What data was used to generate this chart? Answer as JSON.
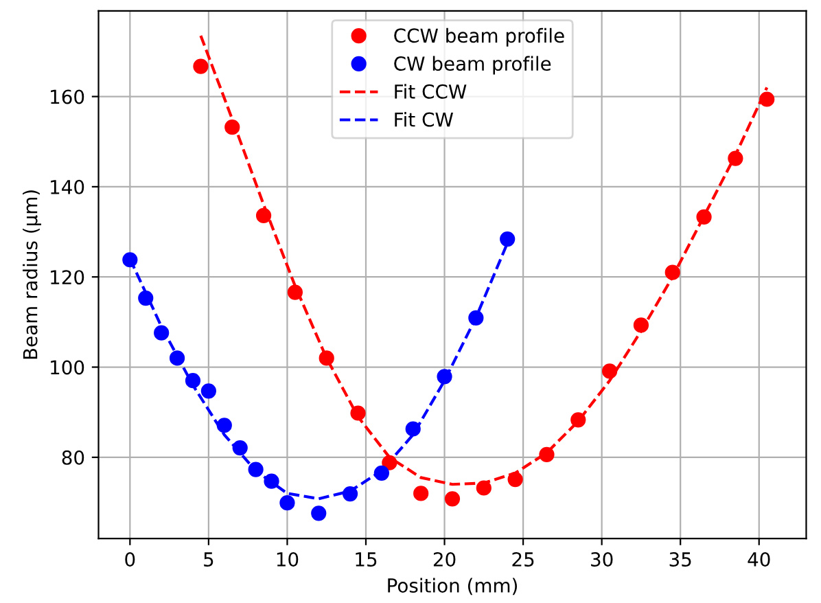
{
  "chart_data": {
    "type": "scatter",
    "xlabel": "Position (mm)",
    "ylabel": "Beam radius (µm)",
    "xlim": [
      -2,
      43
    ],
    "ylim": [
      62,
      179
    ],
    "xticks": [
      0,
      5,
      10,
      15,
      20,
      25,
      30,
      35,
      40
    ],
    "yticks": [
      80,
      100,
      120,
      140,
      160
    ],
    "grid": true,
    "legend": "top center",
    "series": [
      {
        "name": "CCW beam profile",
        "color": "#ff0000",
        "marker": "circle",
        "x": [
          4.5,
          6.5,
          8.5,
          10.5,
          12.5,
          14.5,
          16.5,
          18.5,
          20.5,
          22.5,
          24.5,
          26.5,
          28.5,
          30.5,
          32.5,
          34.5,
          36.5,
          38.5,
          40.5
        ],
        "values": [
          166.7,
          153.2,
          133.6,
          116.6,
          102,
          89.8,
          78.8,
          72,
          70.8,
          73.2,
          75.1,
          80.6,
          88.3,
          99.1,
          109.3,
          121,
          133.3,
          146.3,
          159.4
        ]
      },
      {
        "name": "CW beam profile",
        "color": "#0000ff",
        "marker": "circle",
        "x": [
          0,
          1,
          2,
          3,
          4,
          5,
          6,
          7,
          8,
          9,
          10,
          12,
          14,
          16,
          18,
          20,
          22,
          24
        ],
        "values": [
          123.8,
          115.3,
          107.6,
          102,
          97,
          94.7,
          87.1,
          82.1,
          77.3,
          74.7,
          69.9,
          67.6,
          71.9,
          76.5,
          86.3,
          97.9,
          110.9,
          128.4
        ]
      },
      {
        "name": "Fit CCW",
        "color": "#ff0000",
        "type": "line",
        "marker": "none",
        "line_style": "dashed",
        "x": [
          4.5,
          6.5,
          8.5,
          10.5,
          12.5,
          14.5,
          16.5,
          18.5,
          20.5,
          22.5,
          24.5,
          26.5,
          28.5,
          30.5,
          32.5,
          34.5,
          36.5,
          38.5,
          40.5
        ],
        "values": [
          173.5,
          155,
          136,
          118,
          102,
          89,
          80,
          75.5,
          74,
          74.3,
          76.5,
          81,
          88,
          97,
          108,
          120,
          133.5,
          147,
          162
        ]
      },
      {
        "name": "Fit CW",
        "color": "#0000ff",
        "type": "line",
        "marker": "none",
        "line_style": "dashed",
        "x": [
          0,
          2,
          4,
          6,
          8,
          10,
          12,
          14,
          16,
          18,
          20,
          22,
          24
        ],
        "values": [
          124,
          109,
          96,
          85,
          77,
          72,
          70.8,
          72.5,
          77,
          85,
          97,
          111,
          127.5
        ]
      }
    ]
  }
}
